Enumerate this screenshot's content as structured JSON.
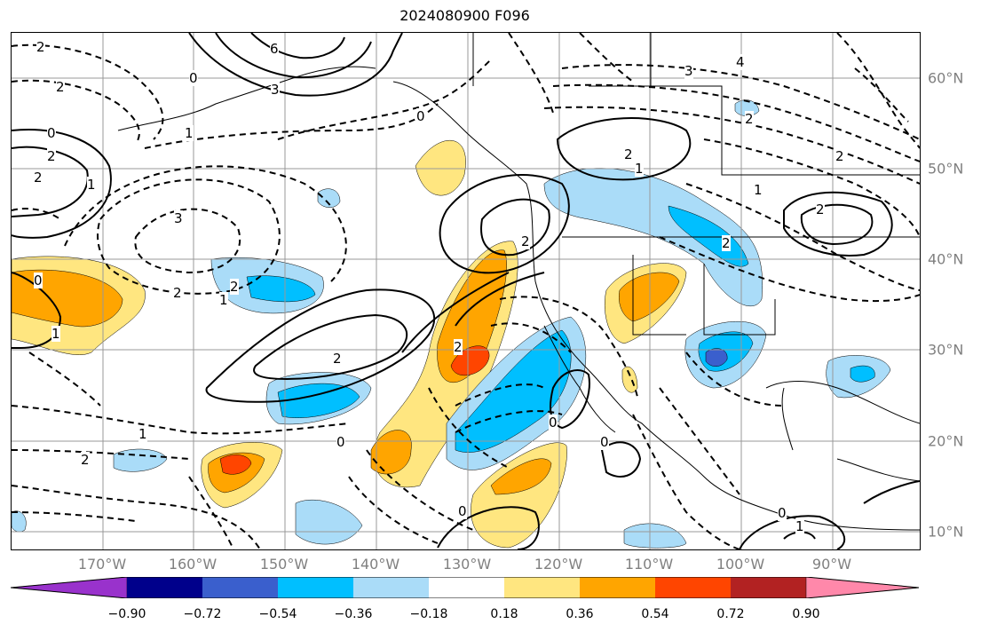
{
  "title": "2024080900 F096",
  "lon_labels": [
    "170°W",
    "160°W",
    "150°W",
    "140°W",
    "130°W",
    "120°W",
    "110°W",
    "100°W",
    "90°W"
  ],
  "lat_labels": [
    "60°N",
    "50°N",
    "40°N",
    "30°N",
    "20°N",
    "10°N"
  ],
  "colorbar": {
    "ticks": [
      "−0.90",
      "−0.72",
      "−0.54",
      "−0.36",
      "−0.18",
      "0.18",
      "0.36",
      "0.54",
      "0.72",
      "0.90"
    ],
    "colors": [
      "#9932cc",
      "#00008b",
      "#3a5fcd",
      "#00bfff",
      "#aadcf8",
      "#ffffff",
      "#ffe680",
      "#ffa500",
      "#ff4500",
      "#b22222",
      "#ff88aa"
    ]
  },
  "contour_labels": [
    {
      "text": "2",
      "id": "a"
    },
    {
      "text": "6",
      "id": "b"
    },
    {
      "text": "3",
      "id": "c"
    },
    {
      "text": "0",
      "id": "d"
    },
    {
      "text": "2",
      "id": "e"
    },
    {
      "text": "1",
      "id": "f"
    },
    {
      "text": "0",
      "id": "g"
    },
    {
      "text": "3",
      "id": "h"
    },
    {
      "text": "4",
      "id": "i"
    },
    {
      "text": "2",
      "id": "j"
    },
    {
      "text": "0",
      "id": "k"
    },
    {
      "text": "2",
      "id": "l"
    },
    {
      "text": "1",
      "id": "m"
    },
    {
      "text": "3",
      "id": "n"
    },
    {
      "text": "2",
      "id": "o"
    },
    {
      "text": "2",
      "id": "p"
    },
    {
      "text": "1",
      "id": "q"
    },
    {
      "text": "2",
      "id": "r"
    },
    {
      "text": "1",
      "id": "s"
    },
    {
      "text": "2",
      "id": "t"
    },
    {
      "text": "2",
      "id": "u"
    },
    {
      "text": "1",
      "id": "v"
    },
    {
      "text": "2",
      "id": "w"
    },
    {
      "text": "0",
      "id": "x"
    },
    {
      "text": "1",
      "id": "y"
    },
    {
      "text": "2",
      "id": "z"
    },
    {
      "text": "0",
      "id": "aa"
    },
    {
      "text": "0",
      "id": "ab"
    },
    {
      "text": "0",
      "id": "ac"
    },
    {
      "text": "1",
      "id": "ad"
    },
    {
      "text": "2",
      "id": "ae"
    },
    {
      "text": "2",
      "id": "af"
    },
    {
      "text": "2",
      "id": "ag"
    },
    {
      "text": "0",
      "id": "ah"
    },
    {
      "text": "0",
      "id": "ai"
    },
    {
      "text": "2",
      "id": "aj"
    },
    {
      "text": "1",
      "id": "ak"
    }
  ]
}
